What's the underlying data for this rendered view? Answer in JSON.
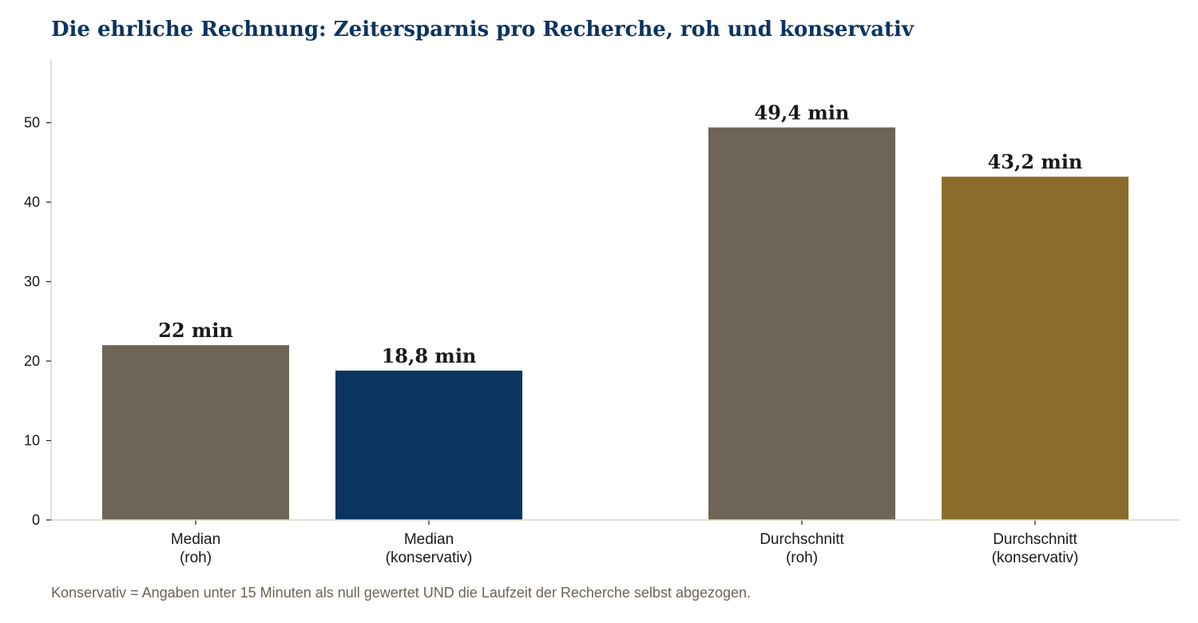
{
  "chart_data": {
    "type": "bar",
    "title": "Die ehrliche Rechnung: Zeitersparnis pro Recherche, roh und konservativ",
    "xlabel": "",
    "ylabel": "",
    "ylim": [
      0,
      58
    ],
    "yticks": [
      0,
      10,
      20,
      30,
      40,
      50
    ],
    "grid": false,
    "legend": "none",
    "categories": [
      [
        "Median",
        "(roh)"
      ],
      [
        "Median",
        "(konservativ)"
      ],
      [
        "Durchschnitt",
        "(roh)"
      ],
      [
        "Durchschnitt",
        "(konservativ)"
      ]
    ],
    "values": [
      22,
      18.8,
      49.4,
      43.2
    ],
    "value_labels": [
      "22 min",
      "18,8 min",
      "49,4 min",
      "43,2 min"
    ],
    "colors": [
      "#6e6557",
      "#0b3461",
      "#6e6557",
      "#8b6c2b"
    ],
    "axis_color": "#ddd6bf",
    "footnote": "Konservativ = Angaben unter 15 Minuten als null gewertet UND die Laufzeit der Recherche selbst abgezogen."
  }
}
